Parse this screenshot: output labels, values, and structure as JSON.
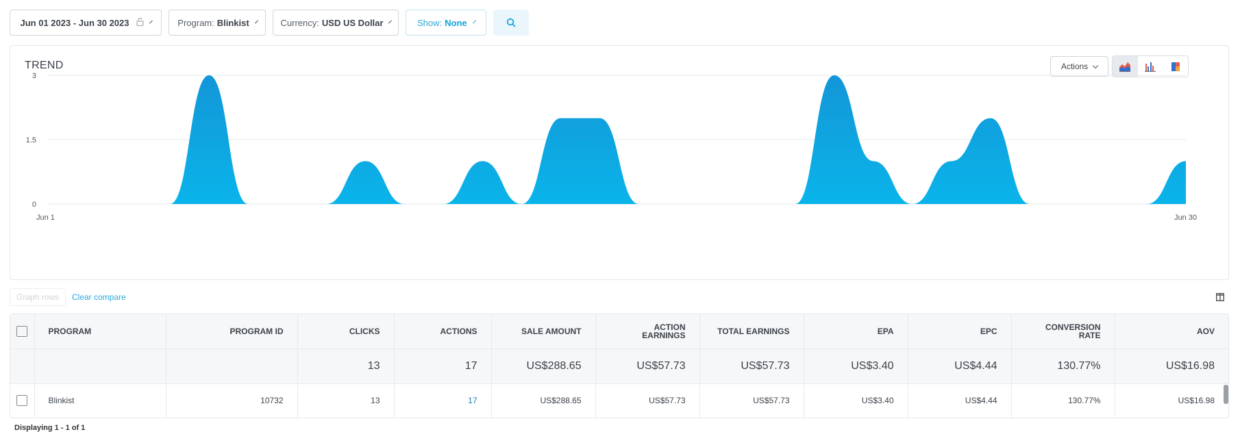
{
  "filters": {
    "date_range": "Jun 01 2023 - Jun 30 2023",
    "program_label": "Program:",
    "program_value": "Blinkist",
    "currency_label": "Currency:",
    "currency_value": "USD US Dollar",
    "show_label": "Show:",
    "show_value": "None"
  },
  "trend": {
    "title": "TREND",
    "actions_label": "Actions",
    "chart_types": [
      "area-chart-icon",
      "bar-chart-icon",
      "stacked-chart-icon"
    ],
    "active_chart_type": "area-chart-icon"
  },
  "chart_data": {
    "type": "area",
    "title": "",
    "xlabel": "",
    "ylabel": "",
    "ylim": [
      0,
      3
    ],
    "yticks": [
      "0",
      "1.5",
      "3"
    ],
    "xtick_labels": [
      "Jun 1",
      "Jun 30"
    ],
    "x": [
      1,
      2,
      3,
      4,
      5,
      6,
      7,
      8,
      9,
      10,
      11,
      12,
      13,
      14,
      15,
      16,
      17,
      18,
      19,
      20,
      21,
      22,
      23,
      24,
      25,
      26,
      27,
      28,
      29,
      30
    ],
    "values": [
      0,
      0,
      0,
      0,
      3,
      0,
      0,
      0,
      1,
      0,
      0,
      1,
      0,
      2,
      2,
      0,
      0,
      0,
      0,
      0,
      3,
      1,
      0,
      1,
      2,
      0,
      0,
      0,
      0,
      1
    ],
    "color": "#0ab4ea",
    "grid": true
  },
  "below_chart": {
    "graph_rows_label": "Graph rows",
    "clear_compare_label": "Clear compare"
  },
  "table": {
    "headers": [
      "PROGRAM",
      "PROGRAM ID",
      "CLICKS",
      "ACTIONS",
      "SALE AMOUNT",
      "ACTION EARNINGS",
      "TOTAL EARNINGS",
      "EPA",
      "EPC",
      "CONVERSION RATE",
      "AOV"
    ],
    "totals": [
      "",
      "",
      "13",
      "17",
      "US$288.65",
      "US$57.73",
      "US$57.73",
      "US$3.40",
      "US$4.44",
      "130.77%",
      "US$16.98"
    ],
    "rows": [
      [
        "Blinkist",
        "10732",
        "13",
        "17",
        "US$288.65",
        "US$57.73",
        "US$57.73",
        "US$3.40",
        "US$4.44",
        "130.77%",
        "US$16.98"
      ]
    ]
  },
  "footer": {
    "displaying": "Displaying 1 - 1 of 1"
  }
}
